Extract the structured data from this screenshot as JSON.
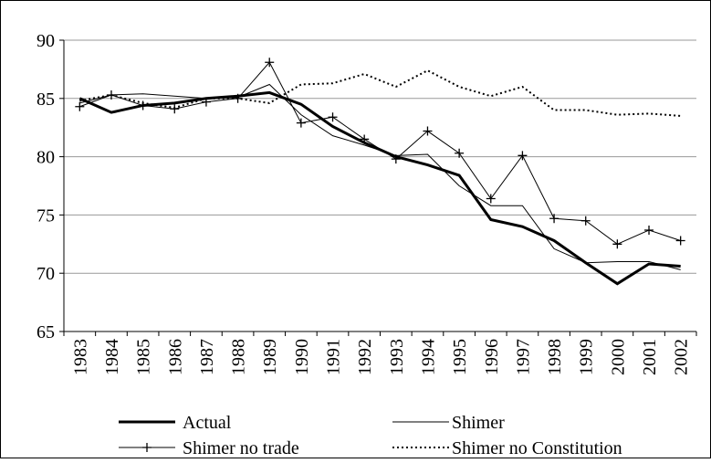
{
  "chart_data": {
    "type": "line",
    "categories": [
      "1983",
      "1984",
      "1985",
      "1986",
      "1987",
      "1988",
      "1989",
      "1990",
      "1991",
      "1992",
      "1993",
      "1994",
      "1995",
      "1996",
      "1997",
      "1998",
      "1999",
      "2000",
      "2001",
      "2002"
    ],
    "series": [
      {
        "name": "Actual",
        "color": "#000000",
        "width": 3,
        "values": [
          85.0,
          83.8,
          84.4,
          84.6,
          85.0,
          85.2,
          85.5,
          84.5,
          82.6,
          81.2,
          80.0,
          79.3,
          78.4,
          74.6,
          74.0,
          72.8,
          70.9,
          69.1,
          70.8,
          70.6
        ]
      },
      {
        "name": "Shimer",
        "color": "#000000",
        "width": 1,
        "values": [
          84.6,
          85.3,
          85.4,
          85.2,
          85.0,
          85.1,
          86.2,
          83.6,
          81.8,
          81.0,
          80.1,
          80.2,
          77.5,
          75.8,
          75.8,
          72.1,
          70.9,
          71.0,
          71.0,
          70.3
        ]
      },
      {
        "name": "Shimer no trade",
        "color": "#000000",
        "width": 1,
        "marker": "plus",
        "values": [
          84.3,
          85.3,
          84.4,
          84.1,
          84.7,
          85.0,
          88.1,
          82.9,
          83.4,
          81.5,
          79.8,
          82.2,
          80.3,
          76.4,
          80.1,
          74.7,
          74.5,
          72.5,
          73.7,
          72.8
        ]
      },
      {
        "name": "Shimer no Constitution",
        "color": "#000000",
        "width": 2,
        "dash": "dotted",
        "values": [
          84.8,
          85.3,
          84.6,
          84.2,
          85.0,
          85.0,
          84.6,
          86.2,
          86.3,
          87.1,
          86.0,
          87.4,
          86.0,
          85.2,
          86.0,
          84.0,
          84.0,
          83.6,
          83.7,
          83.5
        ]
      }
    ],
    "ylim": [
      65,
      90
    ],
    "yticks": [
      65,
      70,
      75,
      80,
      85,
      90
    ],
    "grid": true,
    "legend": "bottom"
  }
}
